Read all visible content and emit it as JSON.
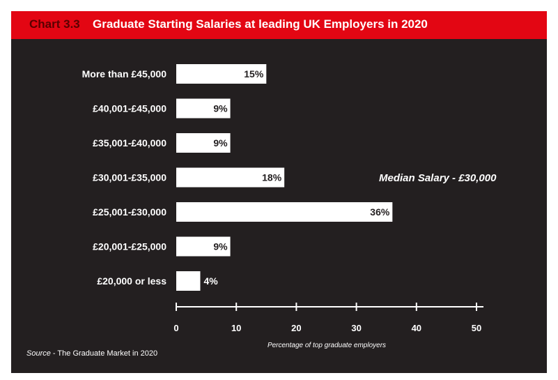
{
  "header": {
    "chart_number": "Chart 3.3",
    "title": "Graduate Starting Salaries at leading UK Employers in 2020"
  },
  "source": {
    "prefix": "Source",
    "text": " - The Graduate Market in 2020"
  },
  "colors": {
    "header_bg": "#e30613",
    "chart_number": "#5a0000",
    "panel_bg": "#231f20",
    "bar": "#ffffff",
    "text": "#ffffff"
  },
  "chart_data": {
    "type": "bar",
    "orientation": "horizontal",
    "title": "Graduate Starting Salaries at leading UK Employers in 2020",
    "categories": [
      "More than £45,000",
      "£40,001-£45,000",
      "£35,001-£40,000",
      "£30,001-£35,000",
      "£25,001-£30,000",
      "£20,001-£25,000",
      "£20,000 or less"
    ],
    "values": [
      15,
      9,
      9,
      18,
      36,
      9,
      4
    ],
    "value_labels": [
      "15%",
      "9%",
      "9%",
      "18%",
      "36%",
      "9%",
      "4%"
    ],
    "xlabel": "Percentage of top graduate employers",
    "ylabel": "",
    "xlim": [
      0,
      50
    ],
    "xticks": [
      0,
      10,
      20,
      30,
      40,
      50
    ],
    "annotation": "Median Salary - £30,000",
    "grid": false
  }
}
